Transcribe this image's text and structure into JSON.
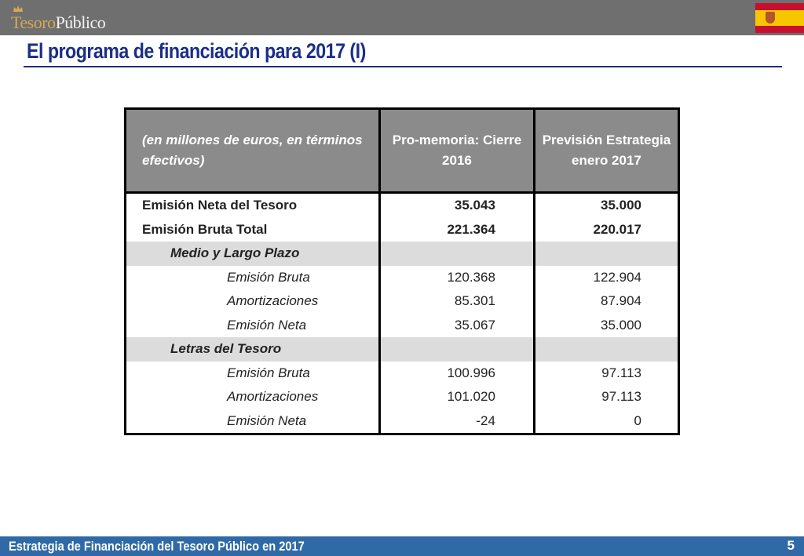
{
  "header": {
    "logo_part1": "Tesoro",
    "logo_part2": "Público",
    "icons": {
      "logo": "crown-icon",
      "flag": "spain-flag-icon"
    }
  },
  "slide": {
    "title": "El programa de financiación para 2017 (I)"
  },
  "table": {
    "header": {
      "label": "(en millones de euros, en términos efectivos)",
      "col1": "Pro-memoria: Cierre 2016",
      "col2": "Previsión Estrategia enero 2017"
    },
    "rows": [
      {
        "label": "Emisión Neta del Tesoro",
        "v1": "35.043",
        "v2": "35.000"
      },
      {
        "label": "Emisión Bruta Total",
        "v1": "221.364",
        "v2": "220.017"
      },
      {
        "label": "Medio y Largo Plazo",
        "v1": "",
        "v2": ""
      },
      {
        "label": "Emisión Bruta",
        "v1": "120.368",
        "v2": "122.904"
      },
      {
        "label": "Amortizaciones",
        "v1": "85.301",
        "v2": "87.904"
      },
      {
        "label": "Emisión Neta",
        "v1": "35.067",
        "v2": "35.000"
      },
      {
        "label": "Letras del Tesoro",
        "v1": "",
        "v2": ""
      },
      {
        "label": "Emisión Bruta",
        "v1": "100.996",
        "v2": "97.113"
      },
      {
        "label": "Amortizaciones",
        "v1": "101.020",
        "v2": "97.113"
      },
      {
        "label": "Emisión Neta",
        "v1": "-24",
        "v2": "0"
      }
    ]
  },
  "footer": {
    "text": "Estrategia de Financiación del Tesoro Público en 2017",
    "page": "5"
  },
  "colors": {
    "title": "#1b2e87",
    "footer_bar": "#2f6aa7",
    "header_bar": "#6f6f6f",
    "table_header": "#8b8b8b",
    "row_shade": "#dcdcdc"
  }
}
